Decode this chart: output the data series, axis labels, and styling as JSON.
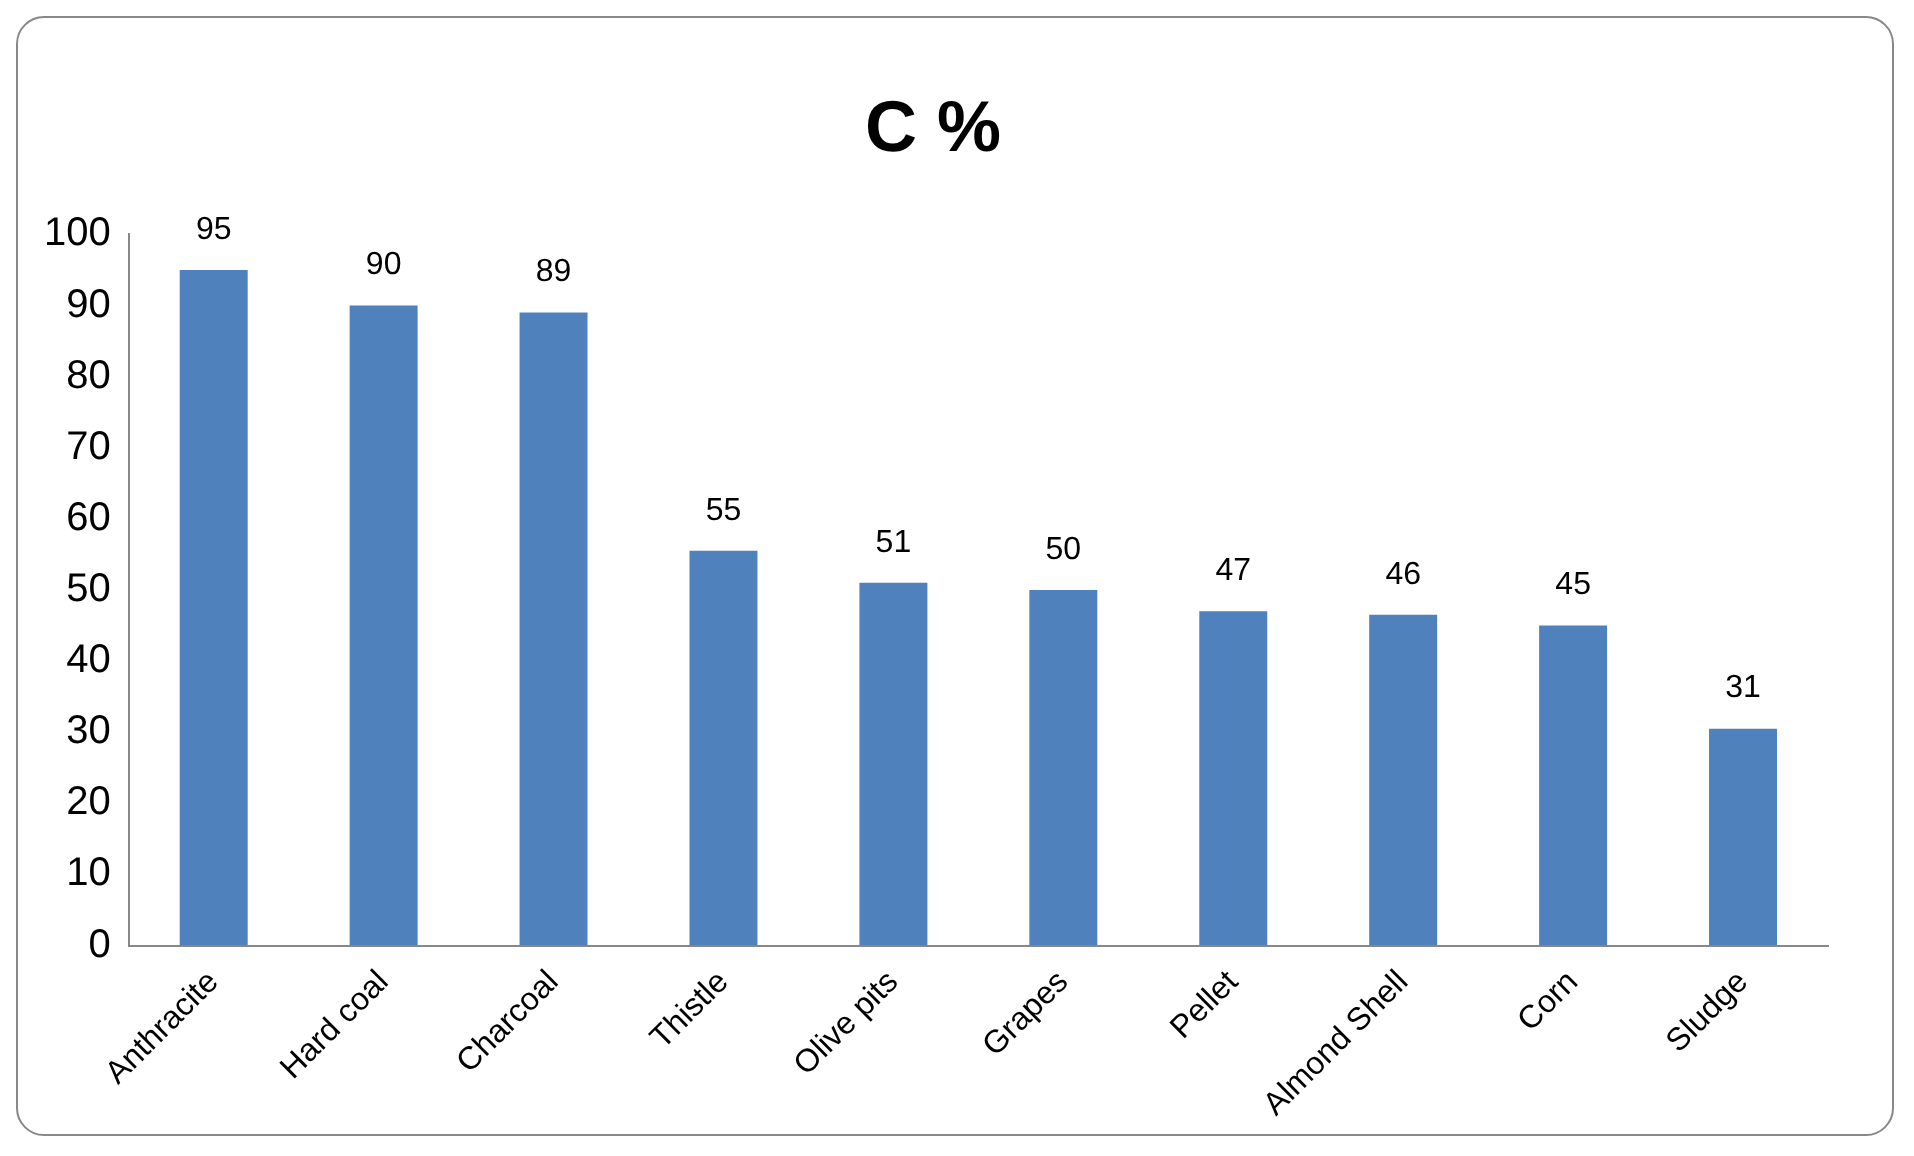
{
  "chart_data": {
    "type": "bar",
    "title": "C %",
    "categories": [
      "Anthracite",
      "Hard coal",
      "Charcoal",
      "Thistle",
      "Olive pits",
      "Grapes",
      "Pellet",
      "Almond Shell",
      "Corn",
      "Sludge"
    ],
    "values": [
      95,
      90,
      89,
      55.5,
      51,
      50,
      47,
      46.5,
      45,
      30.5
    ],
    "value_labels": [
      "95",
      "90",
      "89",
      "55",
      "51",
      "50",
      "47",
      "46",
      "45",
      "31"
    ],
    "color": "#4f81bd",
    "ylim": [
      0,
      100
    ],
    "yticks": [
      0,
      10,
      20,
      30,
      40,
      50,
      60,
      70,
      80,
      90,
      100
    ],
    "grid": false,
    "legend": false
  }
}
